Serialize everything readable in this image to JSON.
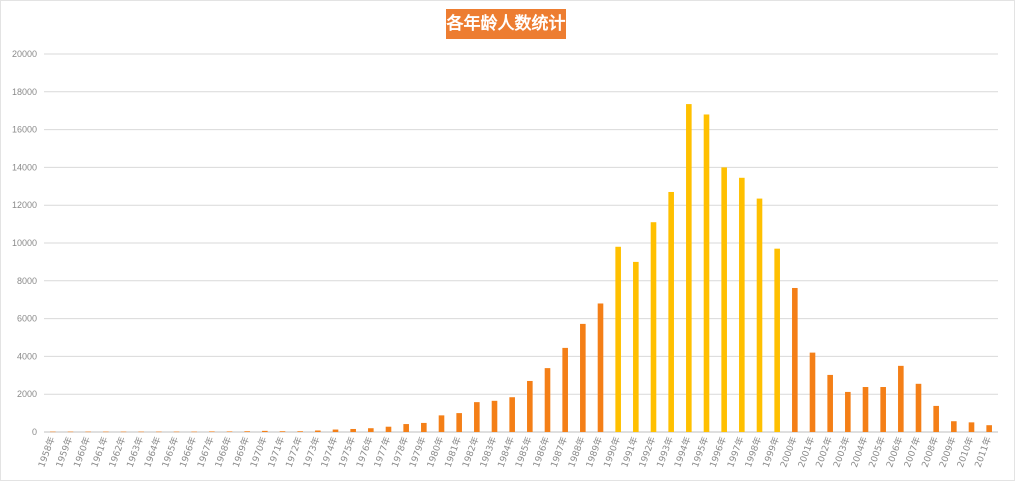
{
  "chart_data": {
    "type": "bar",
    "title": "各年龄人数统计",
    "xlabel": "",
    "ylabel": "",
    "ylim": [
      0,
      20000
    ],
    "yticks": [
      0,
      2000,
      4000,
      6000,
      8000,
      10000,
      12000,
      14000,
      16000,
      18000,
      20000
    ],
    "grid": true,
    "legend": "none",
    "colors": {
      "base": "#f47f17",
      "highlight": "#ffc000",
      "grid": "#d9d9d9",
      "tick": "#8a8a8a",
      "title_bg": "#ed7d31"
    },
    "highlight_categories": [
      "1990年",
      "1991年",
      "1992年",
      "1993年",
      "1994年",
      "1995年",
      "1996年",
      "1997年",
      "1998年",
      "1999年"
    ],
    "categories": [
      "1958年",
      "1959年",
      "1960年",
      "1961年",
      "1962年",
      "1963年",
      "1964年",
      "1965年",
      "1966年",
      "1967年",
      "1968年",
      "1969年",
      "1970年",
      "1971年",
      "1972年",
      "1973年",
      "1974年",
      "1975年",
      "1976年",
      "1977年",
      "1978年",
      "1979年",
      "1980年",
      "1981年",
      "1982年",
      "1983年",
      "1984年",
      "1985年",
      "1986年",
      "1987年",
      "1988年",
      "1989年",
      "1990年",
      "1991年",
      "1992年",
      "1993年",
      "1994年",
      "1995年",
      "1996年",
      "1997年",
      "1998年",
      "1999年",
      "2000年",
      "2001年",
      "2002年",
      "2003年",
      "2004年",
      "2005年",
      "2006年",
      "2007年",
      "2008年",
      "2009年",
      "2010年",
      "2011年"
    ],
    "values": [
      20,
      20,
      20,
      20,
      20,
      20,
      20,
      20,
      20,
      30,
      30,
      40,
      60,
      40,
      40,
      80,
      130,
      160,
      200,
      280,
      420,
      480,
      880,
      1000,
      1580,
      1650,
      1840,
      2700,
      3380,
      4450,
      5720,
      6800,
      9800,
      9000,
      11100,
      12700,
      17350,
      16800,
      14000,
      13450,
      12350,
      9700,
      7620,
      4200,
      3020,
      2120,
      2380,
      2380,
      3500,
      2550,
      1380,
      570,
      510,
      360
    ]
  }
}
